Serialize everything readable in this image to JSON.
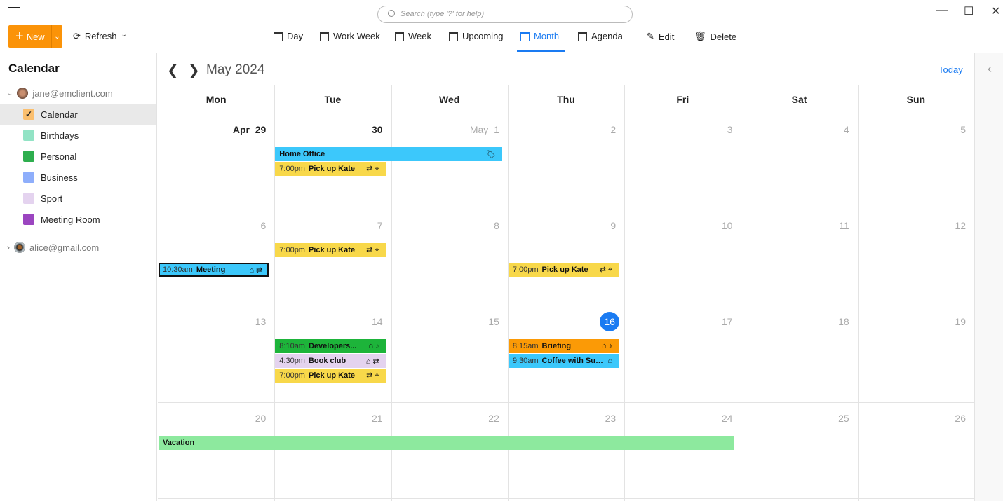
{
  "window": {
    "search_placeholder": "Search (type '?' for help)",
    "minimize": "—",
    "maximize": "☐",
    "close": "✕"
  },
  "toolbar": {
    "new_label": "New",
    "refresh_label": "Refresh",
    "views": [
      {
        "label": "Day",
        "icon": "calendar-day-icon"
      },
      {
        "label": "Work Week",
        "icon": "calendar-workweek-icon"
      },
      {
        "label": "Week",
        "icon": "calendar-week-icon"
      },
      {
        "label": "Upcoming",
        "icon": "calendar-clock-icon"
      },
      {
        "label": "Month",
        "icon": "calendar-month-icon",
        "active": true
      },
      {
        "label": "Agenda",
        "icon": "agenda-icon"
      }
    ],
    "edit_label": "Edit",
    "delete_label": "Delete"
  },
  "sidebar": {
    "title": "Calendar",
    "accounts": [
      {
        "email": "jane@emclient.com",
        "expanded": true
      },
      {
        "email": "alice@gmail.com",
        "expanded": false
      }
    ],
    "calendars": [
      {
        "label": "Calendar",
        "color": "#fbbf6e",
        "checked": true
      },
      {
        "label": "Birthdays",
        "color": "#92e3c5"
      },
      {
        "label": "Personal",
        "color": "#2eae4e"
      },
      {
        "label": "Business",
        "color": "#8eaefb"
      },
      {
        "label": "Sport",
        "color": "#e4d3ef"
      },
      {
        "label": "Meeting Room",
        "color": "#9b45c0"
      }
    ]
  },
  "calendar": {
    "title": "May 2024",
    "today_label": "Today",
    "weekdays": [
      "Mon",
      "Tue",
      "Wed",
      "Thu",
      "Fri",
      "Sat",
      "Sun"
    ],
    "weeks": [
      {
        "days": [
          "Apr  29",
          "30",
          "May  1",
          "2",
          "3",
          "4",
          "5"
        ],
        "current": [
          0,
          1
        ]
      },
      {
        "days": [
          "6",
          "7",
          "8",
          "9",
          "10",
          "11",
          "12"
        ]
      },
      {
        "days": [
          "13",
          "14",
          "15",
          "16",
          "17",
          "18",
          "19"
        ],
        "today": 3
      },
      {
        "days": [
          "20",
          "21",
          "22",
          "23",
          "24",
          "25",
          "26"
        ]
      }
    ],
    "events": [
      {
        "week": 0,
        "start": "Tue",
        "days": 2,
        "time": "",
        "name": "Home Office",
        "icons": "🏷",
        "color": "#3cc8fb"
      },
      {
        "week": 0,
        "start": "Tue",
        "days": 1,
        "time": "7:00pm",
        "name": "Pick up Kate",
        "icons": "⇄⌖",
        "color": "#f8d84a"
      },
      {
        "week": 1,
        "start": "Tue",
        "days": 1,
        "time": "7:00pm",
        "name": "Pick up Kate",
        "icons": "⇄⌖",
        "color": "#f8d84a"
      },
      {
        "week": 1,
        "start": "Mon",
        "days": 1,
        "time": "10:30am",
        "name": "Meeting",
        "icons": "⌂⇄",
        "color": "#3cc8fb",
        "selected": true
      },
      {
        "week": 1,
        "start": "Thu",
        "days": 1,
        "time": "7:00pm",
        "name": "Pick up Kate",
        "icons": "⇄⌖",
        "color": "#f8d84a"
      },
      {
        "week": 2,
        "start": "Tue",
        "days": 1,
        "time": "8:10am",
        "name": "Developers...",
        "icons": "⌂♪",
        "color": "#1db43a"
      },
      {
        "week": 2,
        "start": "Tue",
        "days": 1,
        "time": "4:30pm",
        "name": "Book club",
        "icons": "⌂⇄",
        "color": "#e4d3ef"
      },
      {
        "week": 2,
        "start": "Tue",
        "days": 1,
        "time": "7:00pm",
        "name": "Pick up Kate",
        "icons": "⇄⌖",
        "color": "#f8d84a"
      },
      {
        "week": 2,
        "start": "Thu",
        "days": 1,
        "time": "8:15am",
        "name": "Briefing",
        "icons": "⌂♪",
        "color": "#fb9a06"
      },
      {
        "week": 2,
        "start": "Thu",
        "days": 1,
        "time": "9:30am",
        "name": "Coffee with Suz...",
        "icons": "⌂",
        "color": "#3cc8fb"
      },
      {
        "week": 3,
        "start": "Mon",
        "days": 5,
        "time": "",
        "name": "Vacation",
        "icons": "",
        "color": "#8de99e"
      }
    ]
  }
}
